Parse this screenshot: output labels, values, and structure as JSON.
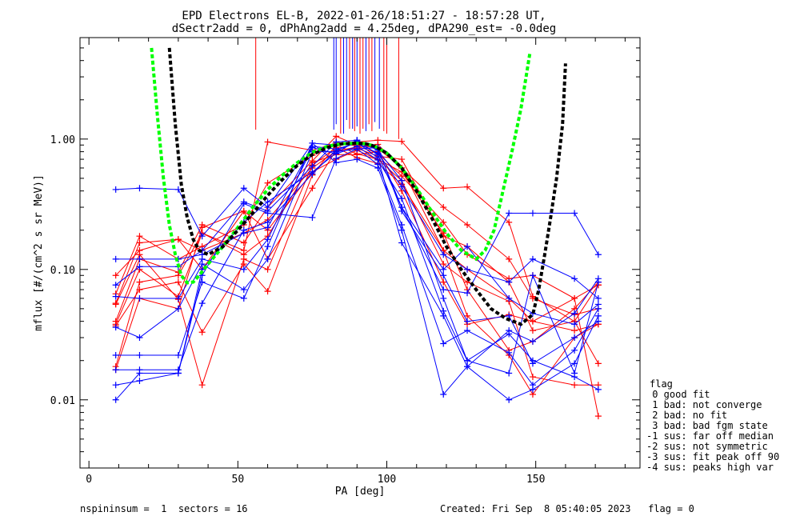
{
  "chart_data": {
    "type": "line",
    "title_line1": "EPD Electrons EL-B, 2022-01-26/18:51:27 - 18:57:28 UT,",
    "title_line2": "dSectr2add = 0, dPhAng2add = 4.25deg, dPA290_est=  -0.0deg",
    "xlabel": "PA [deg]",
    "ylabel": "mflux [#/(cm^2 s sr MeV)]",
    "xlim": [
      -3,
      185
    ],
    "ylim": [
      0.003,
      6.0
    ],
    "yscale": "log",
    "x_ticks": [
      0,
      50,
      100,
      150
    ],
    "x_tick_labels": [
      "0",
      "50",
      "100",
      "150"
    ],
    "y_ticks": [
      0.01,
      0.1,
      1.0
    ],
    "y_tick_labels": [
      "0.01",
      "0.10",
      "1.00"
    ],
    "colors": {
      "red": "#ff0000",
      "blue": "#0000ff",
      "green": "#00ff00",
      "black": "#000000"
    },
    "pa_bins": [
      9,
      17,
      30,
      38,
      52,
      60,
      75,
      83,
      90,
      97,
      105,
      119,
      127,
      141,
      149,
      163,
      171
    ],
    "series": [
      {
        "color": "red",
        "values": [
          0.065,
          0.18,
          0.12,
          0.15,
          0.22,
          0.46,
          0.75,
          0.95,
          0.88,
          0.78,
          0.52,
          0.23,
          0.13,
          0.085,
          0.09,
          0.06,
          0.076
        ]
      },
      {
        "color": "red",
        "values": [
          0.04,
          0.12,
          0.095,
          0.22,
          0.16,
          0.3,
          0.68,
          1.05,
          0.9,
          0.85,
          0.6,
          0.14,
          0.044,
          0.022,
          0.011,
          0.03,
          0.038
        ]
      },
      {
        "color": "red",
        "values": [
          0.018,
          0.08,
          0.09,
          0.19,
          0.14,
          0.95,
          0.82,
          0.93,
          0.95,
          0.98,
          0.96,
          0.42,
          0.43,
          0.23,
          0.062,
          0.04,
          0.019
        ]
      },
      {
        "color": "red",
        "values": [
          0.055,
          0.16,
          0.17,
          0.1,
          0.28,
          0.2,
          0.56,
          0.7,
          0.82,
          0.7,
          0.48,
          0.11,
          0.08,
          0.057,
          0.015,
          0.013,
          0.013
        ]
      },
      {
        "color": "red",
        "values": [
          0.038,
          0.1,
          0.062,
          0.19,
          0.13,
          0.18,
          0.66,
          0.76,
          0.76,
          0.8,
          0.4,
          0.08,
          0.038,
          0.045,
          0.04,
          0.06,
          0.0075
        ]
      },
      {
        "color": "red",
        "values": [
          0.017,
          0.06,
          0.05,
          0.21,
          0.28,
          0.12,
          0.42,
          0.82,
          0.85,
          0.74,
          0.7,
          0.18,
          0.15,
          0.08,
          0.034,
          0.04,
          0.076
        ]
      },
      {
        "color": "red",
        "values": [
          0.037,
          0.07,
          0.08,
          0.033,
          0.11,
          0.068,
          0.53,
          0.9,
          0.77,
          0.7,
          0.56,
          0.19,
          0.07,
          0.024,
          0.028,
          0.05,
          0.08
        ]
      },
      {
        "color": "red",
        "values": [
          0.054,
          0.13,
          0.059,
          0.013,
          0.12,
          0.1,
          0.63,
          0.86,
          0.72,
          0.65,
          0.45,
          0.14,
          0.1,
          0.06,
          0.04,
          0.034,
          0.038
        ]
      },
      {
        "color": "red",
        "values": [
          0.09,
          0.14,
          0.17,
          0.14,
          0.19,
          0.24,
          0.6,
          0.81,
          0.87,
          0.91,
          0.6,
          0.3,
          0.22,
          0.12,
          0.06,
          0.045,
          0.05
        ]
      },
      {
        "color": "blue",
        "values": [
          0.41,
          0.42,
          0.41,
          0.18,
          0.42,
          0.3,
          0.93,
          0.9,
          0.96,
          0.84,
          0.3,
          0.07,
          0.066,
          0.27,
          0.27,
          0.27,
          0.13
        ]
      },
      {
        "color": "blue",
        "values": [
          0.12,
          0.12,
          0.12,
          0.13,
          0.19,
          0.21,
          0.88,
          0.84,
          0.93,
          0.78,
          0.43,
          0.13,
          0.1,
          0.08,
          0.12,
          0.085,
          0.06
        ]
      },
      {
        "color": "blue",
        "values": [
          0.076,
          0.105,
          0.105,
          0.14,
          0.33,
          0.28,
          0.62,
          0.95,
          0.98,
          0.76,
          0.3,
          0.1,
          0.15,
          0.06,
          0.046,
          0.038,
          0.054
        ]
      },
      {
        "color": "blue",
        "values": [
          0.062,
          0.06,
          0.06,
          0.12,
          0.1,
          0.17,
          0.86,
          0.77,
          0.88,
          0.69,
          0.35,
          0.048,
          0.02,
          0.032,
          0.02,
          0.015,
          0.012
        ]
      },
      {
        "color": "blue",
        "values": [
          0.036,
          0.03,
          0.05,
          0.11,
          0.07,
          0.12,
          0.8,
          0.8,
          0.84,
          0.64,
          0.22,
          0.027,
          0.034,
          0.023,
          0.013,
          0.024,
          0.05
        ]
      },
      {
        "color": "blue",
        "values": [
          0.022,
          0.022,
          0.022,
          0.08,
          0.06,
          0.15,
          0.93,
          0.66,
          0.7,
          0.6,
          0.2,
          0.011,
          0.018,
          0.01,
          0.012,
          0.019,
          0.044
        ]
      },
      {
        "color": "blue",
        "values": [
          0.017,
          0.017,
          0.017,
          0.055,
          0.2,
          0.23,
          0.54,
          0.82,
          0.94,
          0.72,
          0.16,
          0.044,
          0.018,
          0.034,
          0.028,
          0.046,
          0.085
        ]
      },
      {
        "color": "blue",
        "values": [
          0.013,
          0.014,
          0.016,
          0.09,
          0.32,
          0.27,
          0.25,
          0.71,
          0.84,
          0.86,
          0.28,
          0.09,
          0.04,
          0.044,
          0.019,
          0.03,
          0.04
        ]
      },
      {
        "color": "blue",
        "values": [
          0.01,
          0.016,
          0.016,
          0.1,
          0.23,
          0.33,
          0.56,
          0.78,
          0.98,
          0.82,
          0.48,
          0.06,
          0.02,
          0.016,
          0.09,
          0.016,
          0.08
        ]
      }
    ],
    "fits": [
      {
        "color": "green",
        "x": [
          21,
          23,
          25,
          27,
          29,
          31,
          33,
          35,
          37,
          40,
          45,
          50,
          55,
          60,
          65,
          70,
          75,
          80,
          85,
          90,
          93,
          96,
          100,
          105,
          110,
          115,
          120,
          125,
          130,
          133,
          136,
          139,
          142,
          145,
          148
        ],
        "y": [
          5.0,
          1.5,
          0.5,
          0.22,
          0.13,
          0.09,
          0.079,
          0.08,
          0.09,
          0.11,
          0.15,
          0.21,
          0.3,
          0.41,
          0.53,
          0.66,
          0.79,
          0.88,
          0.92,
          0.93,
          0.92,
          0.88,
          0.78,
          0.6,
          0.42,
          0.28,
          0.19,
          0.14,
          0.12,
          0.14,
          0.2,
          0.4,
          0.8,
          1.7,
          4.5
        ]
      },
      {
        "color": "black",
        "x": [
          27,
          29,
          31,
          33,
          35,
          37,
          40,
          45,
          50,
          55,
          60,
          65,
          70,
          75,
          80,
          85,
          90,
          93,
          96,
          100,
          105,
          110,
          115,
          120,
          125,
          130,
          135,
          140,
          145,
          149,
          151,
          153,
          155,
          157,
          159,
          160
        ],
        "y": [
          5.0,
          1.3,
          0.45,
          0.25,
          0.17,
          0.14,
          0.13,
          0.15,
          0.2,
          0.27,
          0.37,
          0.49,
          0.63,
          0.76,
          0.86,
          0.92,
          0.93,
          0.92,
          0.88,
          0.78,
          0.6,
          0.4,
          0.25,
          0.15,
          0.1,
          0.07,
          0.05,
          0.042,
          0.038,
          0.045,
          0.07,
          0.13,
          0.25,
          0.5,
          1.3,
          3.8
        ]
      }
    ],
    "spikes": [
      {
        "color": "red",
        "x": 56,
        "y_top": 6.0,
        "y_bottom": 1.18
      },
      {
        "color": "red",
        "x": 104,
        "y_top": 6.0,
        "y_bottom": 1.0
      },
      {
        "color": "blue",
        "x": 82.2,
        "y_top": 6.0,
        "y_bottom": 1.18
      },
      {
        "color": "blue",
        "x": 83.0,
        "y_top": 6.0,
        "y_bottom": 1.3
      },
      {
        "color": "blue",
        "x": 85.5,
        "y_top": 6.0,
        "y_bottom": 1.1
      },
      {
        "color": "blue",
        "x": 86.5,
        "y_top": 6.0,
        "y_bottom": 1.4
      },
      {
        "color": "blue",
        "x": 88.5,
        "y_top": 6.0,
        "y_bottom": 1.2
      },
      {
        "color": "blue",
        "x": 90.0,
        "y_top": 6.0,
        "y_bottom": 1.25
      },
      {
        "color": "blue",
        "x": 93.0,
        "y_top": 6.0,
        "y_bottom": 1.15
      },
      {
        "color": "blue",
        "x": 96.0,
        "y_top": 6.0,
        "y_bottom": 1.35
      },
      {
        "color": "blue",
        "x": 97.5,
        "y_top": 6.0,
        "y_bottom": 1.2
      },
      {
        "color": "red",
        "x": 84.5,
        "y_top": 6.0,
        "y_bottom": 1.1
      },
      {
        "color": "red",
        "x": 87.5,
        "y_top": 6.0,
        "y_bottom": 1.2
      },
      {
        "color": "red",
        "x": 89.2,
        "y_top": 6.0,
        "y_bottom": 1.15
      },
      {
        "color": "red",
        "x": 91.0,
        "y_top": 6.0,
        "y_bottom": 1.1
      },
      {
        "color": "red",
        "x": 92.0,
        "y_top": 6.0,
        "y_bottom": 1.2
      },
      {
        "color": "red",
        "x": 94.0,
        "y_top": 6.0,
        "y_bottom": 1.3
      },
      {
        "color": "red",
        "x": 95.0,
        "y_top": 6.0,
        "y_bottom": 1.15
      },
      {
        "color": "red",
        "x": 99.0,
        "y_top": 6.0,
        "y_bottom": 1.15
      },
      {
        "color": "red",
        "x": 100.0,
        "y_top": 6.0,
        "y_bottom": 1.1
      }
    ]
  },
  "legend": {
    "heading": "flag",
    "items": [
      " 0 good fit",
      " 1 bad: not converge",
      " 2 bad: no fit",
      " 3 bad: bad fgm state",
      "-1 sus: far off median",
      "-2 sus: not symmetric",
      "-3 sus: fit peak off 90",
      "-4 sus: peaks high var"
    ]
  },
  "footer": {
    "left": "nspininsum =  1  sectors = 16",
    "right": "Created: Fri Sep  8 05:40:05 2023   flag = 0"
  }
}
